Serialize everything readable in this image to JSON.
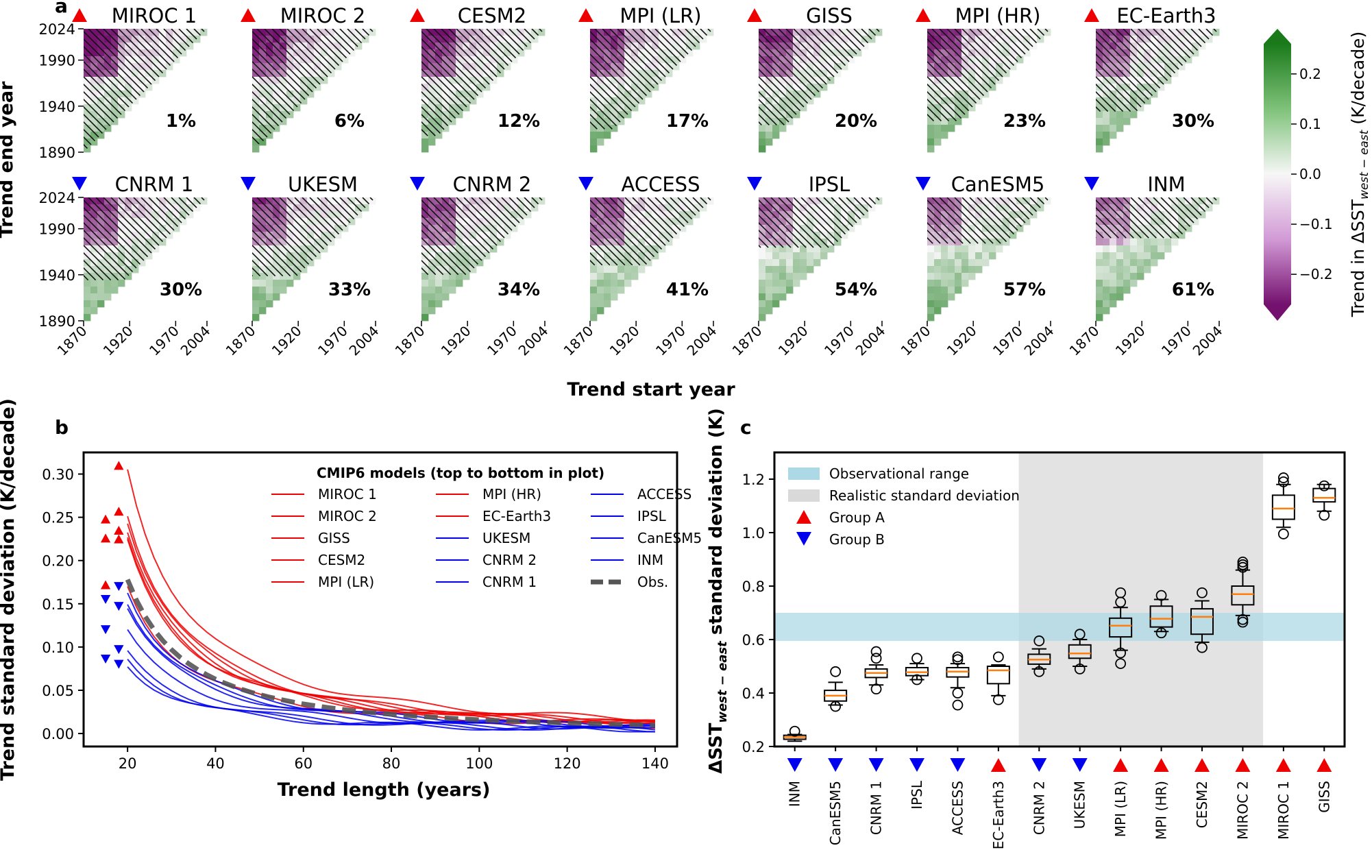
{
  "panel_labels": {
    "a": "a",
    "b": "b",
    "c": "c"
  },
  "colors": {
    "groupA": "#ee0000",
    "groupB": "#0000ee",
    "obs": "#555555",
    "obs_band": "#add8e6",
    "realistic_band": "#d9d9d9",
    "median": "#ff7f0e"
  },
  "chart_data": [
    {
      "id": "a",
      "type": "heatmap",
      "xlabel": "Trend start year",
      "ylabel": "Trend end year",
      "xticks": [
        "1870",
        "1920",
        "1970",
        "2004"
      ],
      "yticks": [
        "2024",
        "1990",
        "1940",
        "1890"
      ],
      "xlim": [
        1870,
        2004
      ],
      "ylim": [
        1890,
        2024
      ],
      "colorbar": {
        "label": "Trend in ΔSST",
        "label_sub": "west − east",
        "label_units": " (K/decade)",
        "ticks": [
          "0.2",
          "0.1",
          "0.0",
          "−0.1",
          "−0.2"
        ],
        "tick_values": [
          0.2,
          0.1,
          0.0,
          -0.1,
          -0.2
        ],
        "range": [
          -0.26,
          0.26
        ]
      },
      "models": [
        {
          "name": "MIROC 1",
          "group": "A",
          "percent": "1%"
        },
        {
          "name": "MIROC 2",
          "group": "A",
          "percent": "6%"
        },
        {
          "name": "CESM2",
          "group": "A",
          "percent": "12%"
        },
        {
          "name": "MPI (LR)",
          "group": "A",
          "percent": "17%"
        },
        {
          "name": "GISS",
          "group": "A",
          "percent": "20%"
        },
        {
          "name": "MPI (HR)",
          "group": "A",
          "percent": "23%"
        },
        {
          "name": "EC-Earth3",
          "group": "A",
          "percent": "30%"
        },
        {
          "name": "CNRM 1",
          "group": "B",
          "percent": "30%"
        },
        {
          "name": "UKESM",
          "group": "B",
          "percent": "33%"
        },
        {
          "name": "CNRM 2",
          "group": "B",
          "percent": "34%"
        },
        {
          "name": "ACCESS",
          "group": "B",
          "percent": "41%"
        },
        {
          "name": "IPSL",
          "group": "B",
          "percent": "54%"
        },
        {
          "name": "CanESM5",
          "group": "B",
          "percent": "57%"
        },
        {
          "name": "INM",
          "group": "B",
          "percent": "61%"
        }
      ]
    },
    {
      "id": "b",
      "type": "line",
      "xlabel": "Trend length (years)",
      "ylabel": "Trend standard deviation (K/decade)",
      "xlim": [
        10,
        145
      ],
      "ylim": [
        -0.015,
        0.325
      ],
      "xticks": [
        20,
        40,
        60,
        80,
        100,
        120,
        140
      ],
      "yticks": [
        0.0,
        0.05,
        0.1,
        0.15,
        0.2,
        0.25,
        0.3
      ],
      "ytick_labels": [
        "0.00",
        "0.05",
        "0.10",
        "0.15",
        "0.20",
        "0.25",
        "0.30"
      ],
      "legend_title": "CMIP6 models (top to bottom in plot)",
      "legend_order": [
        "MIROC 1",
        "MIROC 2",
        "GISS",
        "CESM2",
        "MPI (LR)",
        "MPI (HR)",
        "EC-Earth3",
        "UKESM",
        "CNRM 2",
        "CNRM 1",
        "ACCESS",
        "IPSL",
        "CanESM5",
        "INM",
        "Obs."
      ],
      "series": [
        {
          "name": "MIROC 1",
          "group": "A",
          "sd20": 0.306,
          "tri_y": 0.31,
          "tri_x": 18
        },
        {
          "name": "MIROC 2",
          "group": "A",
          "sd20": 0.254,
          "tri_y": 0.257,
          "tri_x": 18
        },
        {
          "name": "GISS",
          "group": "A",
          "sd20": 0.245,
          "tri_y": 0.248,
          "tri_x": 15
        },
        {
          "name": "CESM2",
          "group": "A",
          "sd20": 0.232,
          "tri_y": 0.235,
          "tri_x": 18
        },
        {
          "name": "MPI (LR)",
          "group": "A",
          "sd20": 0.224,
          "tri_y": 0.226,
          "tri_x": 15
        },
        {
          "name": "MPI (HR)",
          "group": "A",
          "sd20": 0.222,
          "tri_y": 0.225,
          "tri_x": 18
        },
        {
          "name": "EC-Earth3",
          "group": "A",
          "sd20": 0.17,
          "tri_y": 0.172,
          "tri_x": 15
        },
        {
          "name": "UKESM",
          "group": "B",
          "sd20": 0.165,
          "tri_y": 0.17,
          "tri_x": 18
        },
        {
          "name": "CNRM 2",
          "group": "B",
          "sd20": 0.152,
          "tri_y": 0.155,
          "tri_x": 15
        },
        {
          "name": "CNRM 1",
          "group": "B",
          "sd20": 0.145,
          "tri_y": 0.147,
          "tri_x": 18
        },
        {
          "name": "ACCESS",
          "group": "B",
          "sd20": 0.118,
          "tri_y": 0.12,
          "tri_x": 15
        },
        {
          "name": "IPSL",
          "group": "B",
          "sd20": 0.093,
          "tri_y": 0.097,
          "tri_x": 18
        },
        {
          "name": "CanESM5",
          "group": "B",
          "sd20": 0.085,
          "tri_y": 0.086,
          "tri_x": 15
        },
        {
          "name": "INM",
          "group": "B",
          "sd20": 0.079,
          "tri_y": 0.08,
          "tri_x": 18
        },
        {
          "name": "Obs.",
          "group": "obs",
          "sd20": 0.178
        }
      ]
    },
    {
      "id": "c",
      "type": "box",
      "ylabel": "ΔSST",
      "ylabel_sub": "west − east",
      "ylabel_rest": " standard deviation (K)",
      "ylim": [
        0.2,
        1.3
      ],
      "yticks": [
        0.2,
        0.4,
        0.6,
        0.8,
        1.0,
        1.2
      ],
      "ytick_labels": [
        "0.2",
        "0.4",
        "0.6",
        "0.8",
        "1.0",
        "1.2"
      ],
      "obs_range": [
        0.595,
        0.7
      ],
      "realistic_range_models": [
        "CNRM 2",
        "MIROC 2"
      ],
      "legend": [
        "Observational range",
        "Realistic standard deviation",
        "Group A",
        "Group B"
      ],
      "boxes": [
        {
          "name": "INM",
          "group": "B",
          "q1": 0.227,
          "median": 0.235,
          "q3": 0.242,
          "wlo": 0.22,
          "whi": 0.245,
          "fliers": [
            0.257
          ]
        },
        {
          "name": "CanESM5",
          "group": "B",
          "q1": 0.37,
          "median": 0.39,
          "q3": 0.41,
          "wlo": 0.355,
          "whi": 0.44,
          "fliers": [
            0.35,
            0.48
          ]
        },
        {
          "name": "CNRM 1",
          "group": "B",
          "q1": 0.458,
          "median": 0.475,
          "q3": 0.49,
          "wlo": 0.43,
          "whi": 0.505,
          "fliers": [
            0.415,
            0.53,
            0.555
          ]
        },
        {
          "name": "IPSL",
          "group": "B",
          "q1": 0.465,
          "median": 0.478,
          "q3": 0.495,
          "wlo": 0.45,
          "whi": 0.51,
          "fliers": [
            0.45,
            0.53
          ]
        },
        {
          "name": "ACCESS",
          "group": "B",
          "q1": 0.46,
          "median": 0.48,
          "q3": 0.495,
          "wlo": 0.42,
          "whi": 0.51,
          "fliers": [
            0.355,
            0.4,
            0.525,
            0.535
          ]
        },
        {
          "name": "EC-Earth3",
          "group": "A",
          "q1": 0.435,
          "median": 0.485,
          "q3": 0.5,
          "wlo": 0.39,
          "whi": 0.505,
          "fliers": [
            0.375,
            0.535
          ]
        },
        {
          "name": "CNRM 2",
          "group": "B",
          "q1": 0.508,
          "median": 0.525,
          "q3": 0.545,
          "wlo": 0.49,
          "whi": 0.565,
          "fliers": [
            0.48,
            0.595
          ]
        },
        {
          "name": "UKESM",
          "group": "B",
          "q1": 0.53,
          "median": 0.548,
          "q3": 0.58,
          "wlo": 0.5,
          "whi": 0.6,
          "fliers": [
            0.49,
            0.62
          ]
        },
        {
          "name": "MPI (LR)",
          "group": "A",
          "q1": 0.61,
          "median": 0.652,
          "q3": 0.68,
          "wlo": 0.56,
          "whi": 0.72,
          "fliers": [
            0.51,
            0.55,
            0.74,
            0.775
          ]
        },
        {
          "name": "MPI (HR)",
          "group": "A",
          "q1": 0.647,
          "median": 0.678,
          "q3": 0.725,
          "wlo": 0.63,
          "whi": 0.75,
          "fliers": [
            0.625,
            0.765
          ]
        },
        {
          "name": "CESM2",
          "group": "A",
          "q1": 0.62,
          "median": 0.685,
          "q3": 0.715,
          "wlo": 0.59,
          "whi": 0.745,
          "fliers": [
            0.57,
            0.775
          ]
        },
        {
          "name": "MIROC 2",
          "group": "A",
          "q1": 0.73,
          "median": 0.77,
          "q3": 0.8,
          "wlo": 0.69,
          "whi": 0.86,
          "fliers": [
            0.665,
            0.675,
            0.87,
            0.88,
            0.89
          ]
        },
        {
          "name": "MIROC 1",
          "group": "A",
          "q1": 1.05,
          "median": 1.09,
          "q3": 1.14,
          "wlo": 1.02,
          "whi": 1.18,
          "fliers": [
            0.995,
            1.19,
            1.205
          ]
        },
        {
          "name": "GISS",
          "group": "A",
          "q1": 1.115,
          "median": 1.13,
          "q3": 1.165,
          "wlo": 1.08,
          "whi": 1.18,
          "fliers": [
            1.065,
            1.175
          ]
        }
      ]
    }
  ]
}
